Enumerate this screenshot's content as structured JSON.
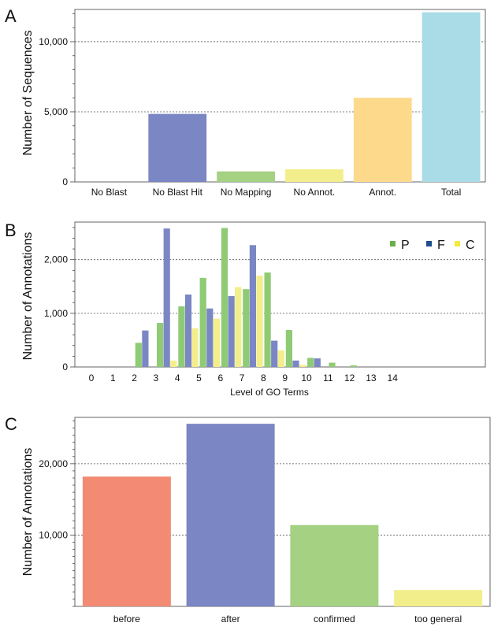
{
  "chart_data": [
    {
      "id": "A",
      "panel_letter": "A",
      "type": "bar",
      "ylabel": "Number of Sequences",
      "xlabel": "",
      "ylim": [
        0,
        12300
      ],
      "yticks": [
        0,
        5000,
        10000
      ],
      "ytick_labels": [
        "0",
        "5,000",
        "10,000"
      ],
      "gridlines": [
        5000,
        10000
      ],
      "categories": [
        "No Blast",
        "No Blast Hit",
        "No Mapping",
        "No Annot.",
        "Annot.",
        "Total"
      ],
      "values": [
        0,
        4850,
        750,
        900,
        6000,
        12100
      ],
      "colors": [
        "#7b86c4",
        "#7b86c4",
        "#a4d182",
        "#f3ee8c",
        "#fdd98c",
        "#a9dce6"
      ]
    },
    {
      "id": "B",
      "panel_letter": "B",
      "type": "bar",
      "ylabel": "Number of Annotations",
      "xlabel": "Level of GO Terms",
      "ylim": [
        0,
        2700
      ],
      "yticks": [
        0,
        1000,
        2000
      ],
      "ytick_labels": [
        "0",
        "1,000",
        "2,000"
      ],
      "gridlines": [
        1000,
        2000
      ],
      "categories": [
        "0",
        "1",
        "2",
        "3",
        "4",
        "5",
        "6",
        "7",
        "8",
        "9",
        "10",
        "11",
        "12",
        "13",
        "14"
      ],
      "legend_position": "top-right",
      "series": [
        {
          "name": "P",
          "color": "#8fcb74",
          "legend_color": "#6ab04c",
          "values": [
            0,
            0,
            450,
            820,
            1130,
            1660,
            2590,
            1450,
            1760,
            690,
            170,
            80,
            30,
            0,
            0
          ]
        },
        {
          "name": "F",
          "color": "#7b86c4",
          "legend_color": "#1f4e8c",
          "values": [
            0,
            0,
            680,
            2580,
            1350,
            1090,
            1320,
            2270,
            490,
            120,
            160,
            0,
            0,
            0,
            0
          ]
        },
        {
          "name": "C",
          "color": "#f3ee8c",
          "legend_color": "#f2ea3c",
          "values": [
            0,
            0,
            0,
            120,
            720,
            900,
            1490,
            1700,
            310,
            40,
            0,
            0,
            0,
            0,
            0
          ]
        }
      ]
    },
    {
      "id": "C",
      "panel_letter": "C",
      "type": "bar",
      "ylabel": "Number of Annotations",
      "xlabel": "",
      "ylim": [
        0,
        26500
      ],
      "yticks": [
        10000,
        20000
      ],
      "ytick_labels": [
        "10,000",
        "20,000"
      ],
      "gridlines": [
        10000,
        20000
      ],
      "categories": [
        "before",
        "after",
        "confirmed",
        "too general"
      ],
      "values": [
        18200,
        25600,
        11400,
        2300
      ],
      "colors": [
        "#f38b74",
        "#7b86c4",
        "#a4d182",
        "#f3ee8c"
      ]
    }
  ]
}
